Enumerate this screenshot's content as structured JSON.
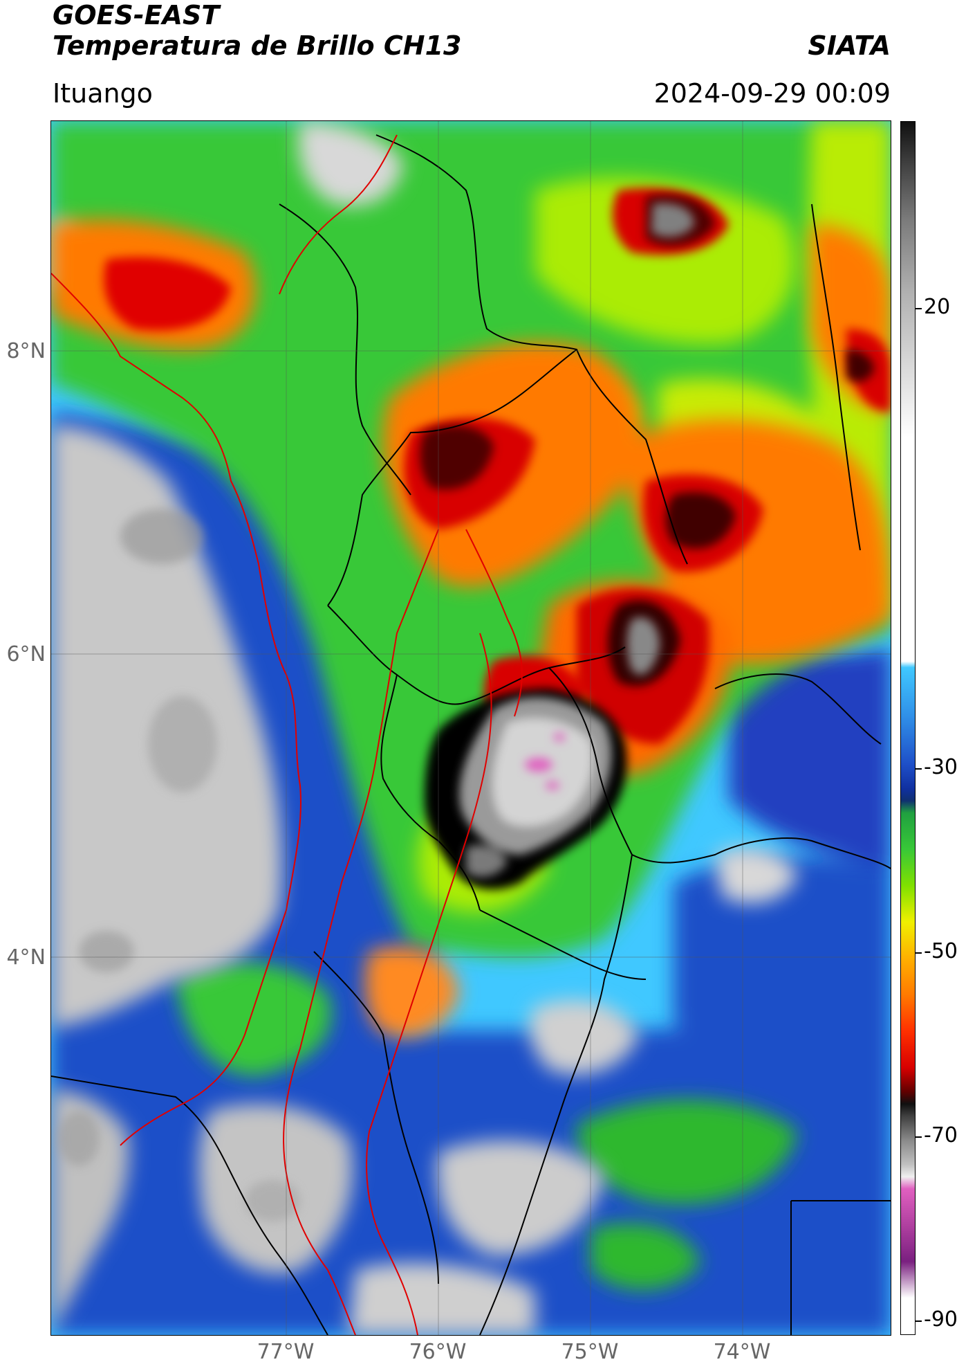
{
  "header": {
    "satellite": "GOES-EAST",
    "product": "Temperatura de Brillo CH13",
    "brand": "SIATA",
    "location": "Ituango",
    "timestamp": "2024-09-29 00:09"
  },
  "axes": {
    "lat_labels": [
      {
        "label": "8°N",
        "value": 8
      },
      {
        "label": "6°N",
        "value": 6
      },
      {
        "label": "4°N",
        "value": 4
      }
    ],
    "lon_labels": [
      {
        "label": "77°W",
        "value": -77
      },
      {
        "label": "76°W",
        "value": -76
      },
      {
        "label": "75°W",
        "value": -75
      },
      {
        "label": "74°W",
        "value": -74
      }
    ]
  },
  "colorbar": {
    "ticks": [
      {
        "label": "20",
        "value": 20
      },
      {
        "label": "-30",
        "value": -30
      },
      {
        "label": "-50",
        "value": -50
      },
      {
        "label": "-70",
        "value": -70
      },
      {
        "label": "-90",
        "value": -90
      }
    ]
  },
  "colors": {
    "warm_gray": "#c8c8c8",
    "cyan": "#40c8ff",
    "blue": "#1e4fc8",
    "green": "#38c838",
    "yellow": "#f0f000",
    "orange": "#ff7a00",
    "red": "#d80000",
    "dark_red": "#600000",
    "black": "#101010",
    "magenta": "#e060c0",
    "border_black": "#000000",
    "border_red": "#e00000"
  }
}
